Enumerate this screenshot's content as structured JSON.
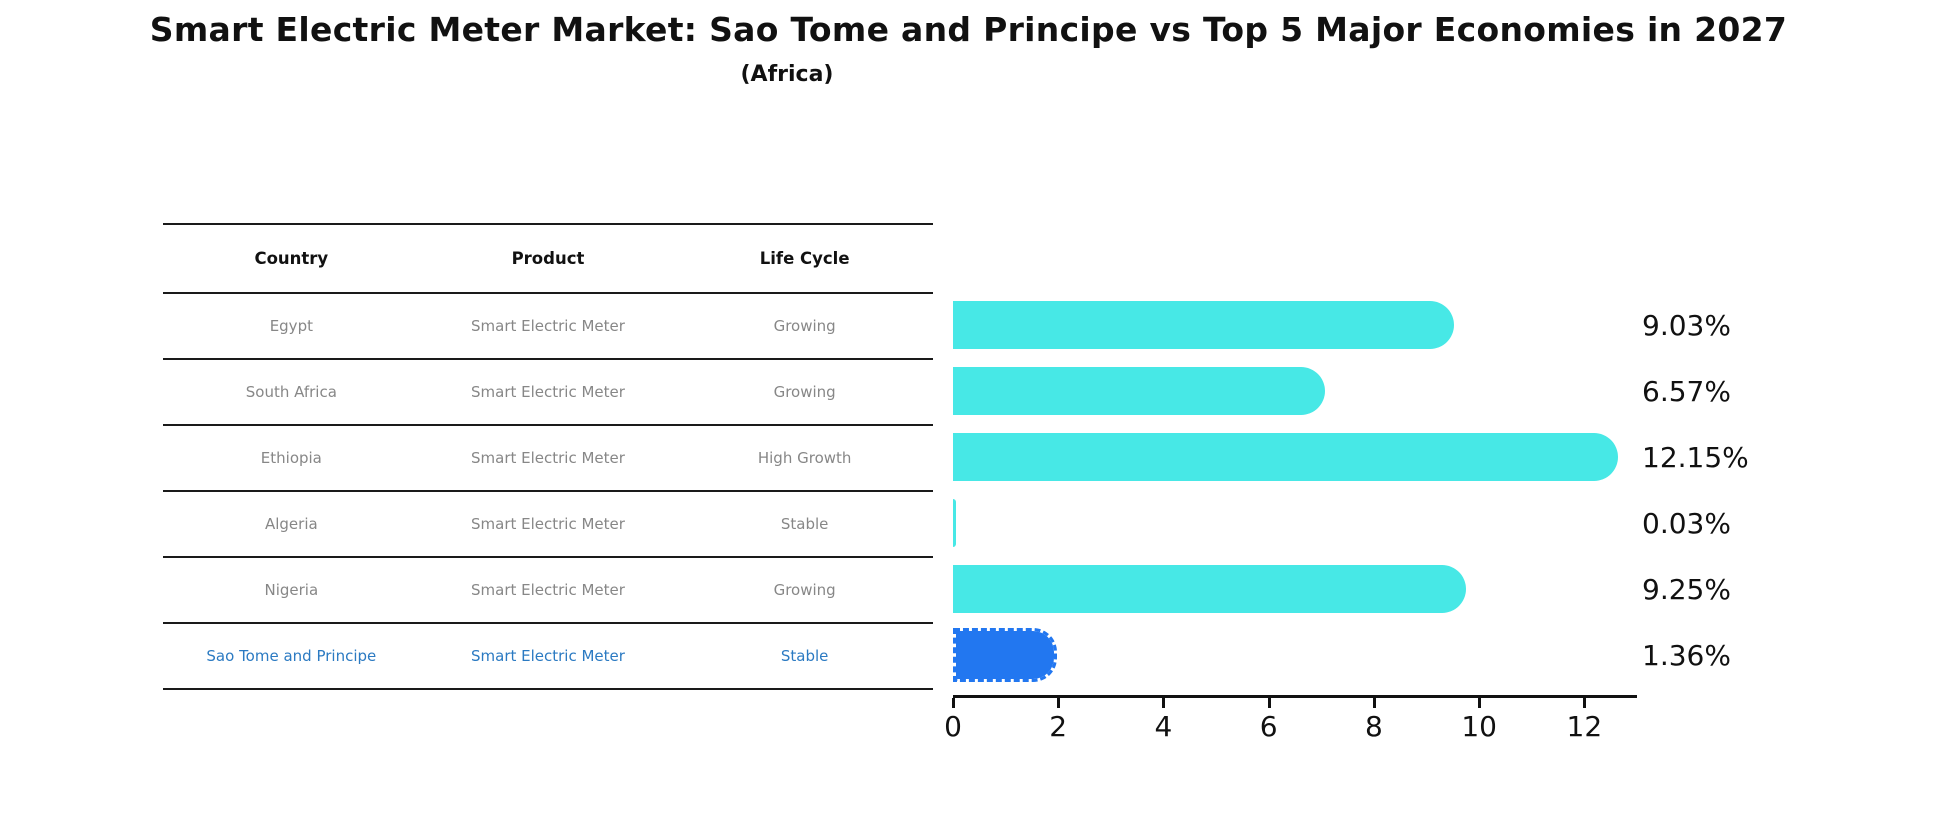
{
  "title": "Smart Electric Meter Market: Sao Tome and Principe vs Top 5 Major Economies in 2027",
  "subtitle": "(Africa)",
  "table": {
    "headers": [
      "Country",
      "Product",
      "Life Cycle"
    ],
    "rows": [
      {
        "country": "Egypt",
        "product": "Smart Electric Meter",
        "life_cycle": "Growing"
      },
      {
        "country": "South Africa",
        "product": "Smart Electric Meter",
        "life_cycle": "Growing"
      },
      {
        "country": "Ethiopia",
        "product": "Smart Electric Meter",
        "life_cycle": "High Growth"
      },
      {
        "country": "Algeria",
        "product": "Smart Electric Meter",
        "life_cycle": "Stable"
      },
      {
        "country": "Nigeria",
        "product": "Smart Electric Meter",
        "life_cycle": "Growing"
      },
      {
        "country": "Sao Tome and Principe",
        "product": "Smart Electric Meter",
        "life_cycle": "Stable"
      }
    ]
  },
  "chart_data": {
    "type": "bar",
    "orientation": "horizontal",
    "categories": [
      "Egypt",
      "South Africa",
      "Ethiopia",
      "Algeria",
      "Nigeria",
      "Sao Tome and Principe"
    ],
    "values": [
      9.03,
      6.57,
      12.15,
      0.03,
      9.25,
      1.36
    ],
    "value_labels": [
      "9.03%",
      "6.57%",
      "12.15%",
      "0.03%",
      "9.25%",
      "1.36%"
    ],
    "xlim": [
      0,
      13
    ],
    "x_ticks": [
      0,
      2,
      4,
      6,
      8,
      10,
      12
    ],
    "grid": false,
    "legend": false,
    "highlight_index": 5,
    "colors": {
      "default_bar": "#47e8e6",
      "highlight_bar": "#2277f0",
      "highlight_text": "#2b7ac2",
      "row_text": "#878787",
      "header_text": "#111111"
    }
  }
}
